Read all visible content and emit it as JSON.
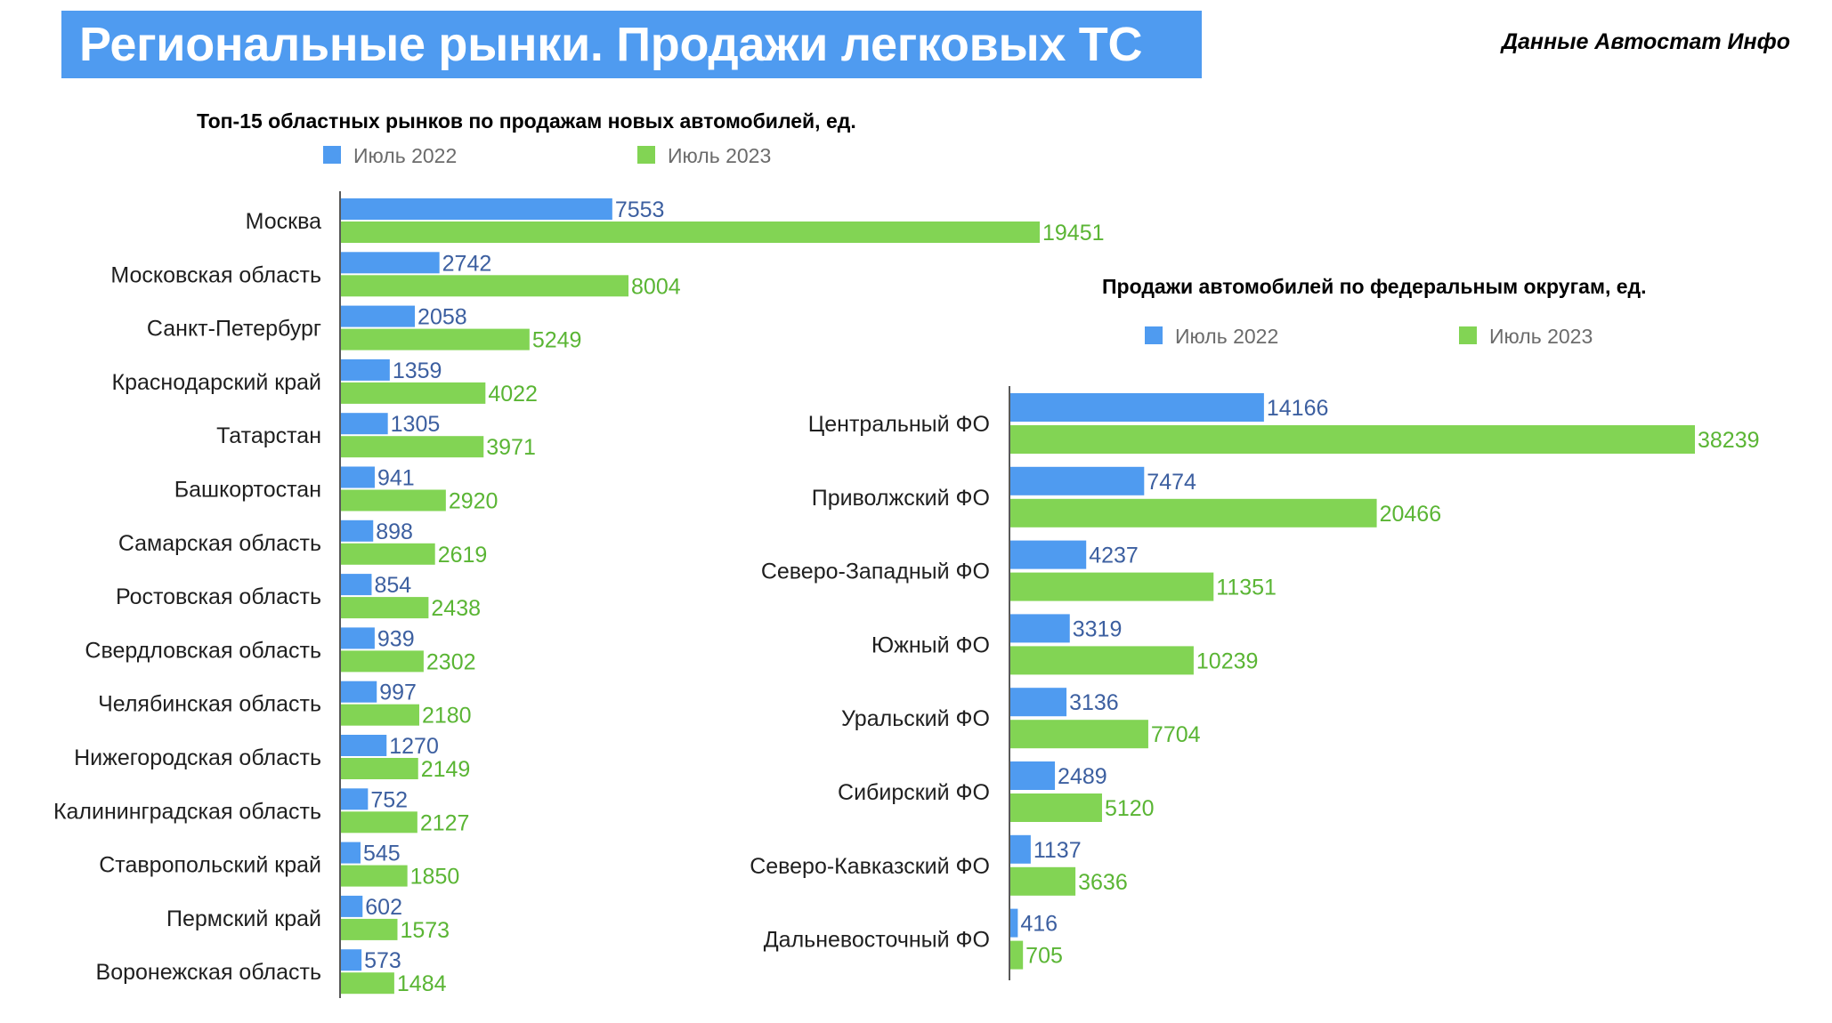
{
  "header": {
    "title": "Региональные рынки. Продажи легковых ТС",
    "source": "Данные Автостат Инфо"
  },
  "colors": {
    "banner": "#4f9bf0",
    "series_2022": "#4f9bf0",
    "series_2023": "#82d454"
  },
  "chart_data": [
    {
      "type": "bar",
      "orientation": "horizontal",
      "title": "Топ-15 областных рынков по продажам новых автомобилей, ед.",
      "categories": [
        "Москва",
        "Московская область",
        "Санкт-Петербург",
        "Краснодарский край",
        "Татарстан",
        "Башкортостан",
        "Самарская область",
        "Ростовская область",
        "Свердловская область",
        "Челябинская область",
        "Нижегородская область",
        "Калининградская область",
        "Ставропольский край",
        "Пермский край",
        "Воронежская область"
      ],
      "series": [
        {
          "name": "Июль 2022",
          "values": [
            7553,
            2742,
            2058,
            1359,
            1305,
            941,
            898,
            854,
            939,
            997,
            1270,
            752,
            545,
            602,
            573
          ]
        },
        {
          "name": "Июль 2023",
          "values": [
            19451,
            8004,
            5249,
            4022,
            3971,
            2920,
            2619,
            2438,
            2302,
            2180,
            2149,
            2127,
            1850,
            1573,
            1484
          ]
        }
      ],
      "xlim": [
        0,
        19451
      ],
      "legend": "top-left",
      "grid": false
    },
    {
      "type": "bar",
      "orientation": "horizontal",
      "title": "Продажи автомобилей по федеральным округам, ед.",
      "categories": [
        "Центральный ФО",
        "Приволжский ФО",
        "Северо-Западный ФО",
        "Южный ФО",
        "Уральский ФО",
        "Сибирский ФО",
        "Северо-Кавказский ФО",
        "Дальневосточный ФО"
      ],
      "series": [
        {
          "name": "Июль 2022",
          "values": [
            14166,
            7474,
            4237,
            3319,
            3136,
            2489,
            1137,
            416
          ]
        },
        {
          "name": "Июль 2023",
          "values": [
            38239,
            20466,
            11351,
            10239,
            7704,
            5120,
            3636,
            705
          ]
        }
      ],
      "xlim": [
        0,
        38239
      ],
      "legend": "top-left",
      "grid": false
    }
  ]
}
